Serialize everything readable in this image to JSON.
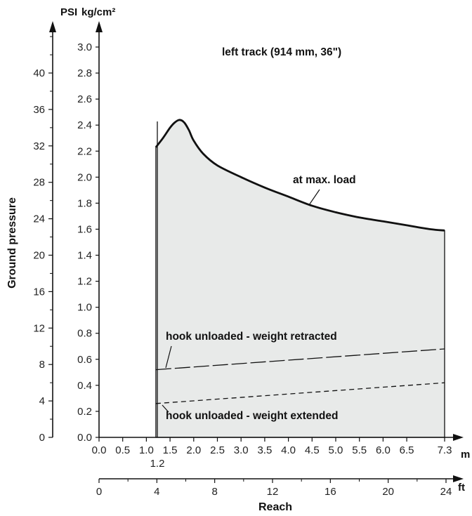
{
  "chart_data": {
    "type": "area",
    "title": "left track (914 mm, 36\")",
    "xlabel": "Reach",
    "ylabel": "Ground pressure",
    "axes": {
      "y_primary_unit": "kg/cm²",
      "y_secondary_unit": "PSI",
      "x_primary_unit": "m",
      "x_secondary_unit": "ft",
      "x_start_marker": "1.2"
    },
    "x_ticks": [
      "0.0",
      "0.5",
      "1.0",
      "1.5",
      "2.0",
      "2.5",
      "3.0",
      "3.5",
      "4.0",
      "4.5",
      "5.0",
      "5.5",
      "6.0",
      "6.5",
      "7.3"
    ],
    "x_secondary_ticks": [
      "0",
      "4",
      "8",
      "12",
      "16",
      "20",
      "24"
    ],
    "y_ticks": [
      "0.0",
      "0.2",
      "0.4",
      "0.6",
      "0.8",
      "1.0",
      "1.2",
      "1.4",
      "1.6",
      "1.8",
      "2.0",
      "2.2",
      "2.4",
      "2.6",
      "2.8",
      "3.0"
    ],
    "y_secondary_ticks": [
      "0",
      "4",
      "8",
      "12",
      "16",
      "20",
      "24",
      "28",
      "32",
      "36",
      "40"
    ],
    "xlim": [
      0,
      7.3
    ],
    "ylim": [
      0,
      3.0
    ],
    "shaded_range": [
      1.2,
      7.3
    ],
    "series": [
      {
        "name": "at max. load",
        "style": "solid",
        "x": [
          1.2,
          1.35,
          1.5,
          1.6,
          1.7,
          1.8,
          1.9,
          2.0,
          2.2,
          2.5,
          3.0,
          3.5,
          4.0,
          4.5,
          5.0,
          5.5,
          6.0,
          6.5,
          7.0,
          7.3
        ],
        "y": [
          2.23,
          2.3,
          2.38,
          2.42,
          2.44,
          2.42,
          2.36,
          2.28,
          2.18,
          2.09,
          2.0,
          1.92,
          1.85,
          1.78,
          1.73,
          1.69,
          1.66,
          1.63,
          1.6,
          1.59
        ]
      },
      {
        "name": "hook unloaded - weight retracted",
        "style": "dash-long",
        "x": [
          1.2,
          7.3
        ],
        "y": [
          0.52,
          0.68
        ]
      },
      {
        "name": "hook unloaded - weight extended",
        "style": "dash-short",
        "x": [
          1.2,
          7.3
        ],
        "y": [
          0.26,
          0.42
        ]
      }
    ],
    "colors": {
      "fill": "#e8eae9",
      "line": "#111111"
    }
  }
}
